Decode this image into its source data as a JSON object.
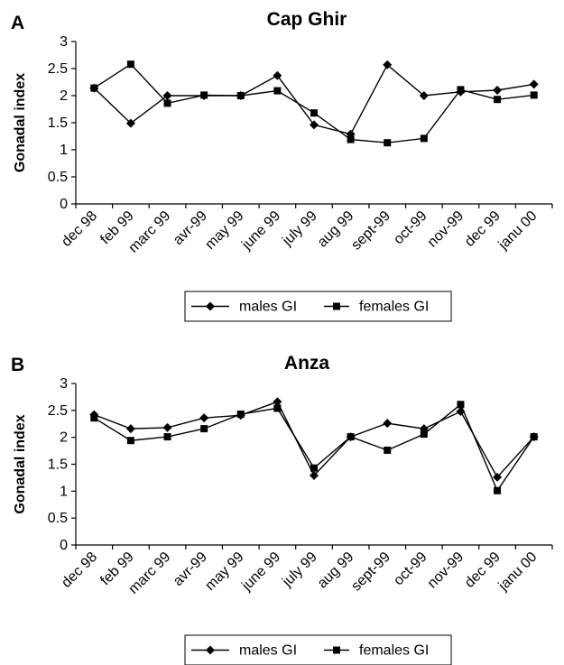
{
  "chart_data": [
    {
      "panel_label": "A",
      "type": "line",
      "title": "Cap Ghir",
      "xlabel": "",
      "ylabel": "Gonadal index",
      "ylim": [
        0,
        3
      ],
      "yticks": [
        "0",
        "0.5",
        "1",
        "1.5",
        "2",
        "2.5",
        "3"
      ],
      "categories": [
        "dec 98",
        "feb 99",
        "marc 99",
        "avr-99",
        "may 99",
        "june 99",
        "july 99",
        "aug 99",
        "sept-99",
        "oct-99",
        "nov-99",
        "dec 99",
        "janu 00"
      ],
      "grid": false,
      "legend_position": "bottom",
      "series": [
        {
          "name": "males GI",
          "marker": "diamond",
          "values": [
            2.14,
            1.49,
            2.0,
            2.0,
            2.0,
            2.37,
            1.46,
            1.29,
            2.57,
            2.0,
            2.07,
            2.1,
            2.21
          ]
        },
        {
          "name": "females GI",
          "marker": "square",
          "values": [
            2.14,
            2.58,
            1.86,
            2.01,
            2.0,
            2.09,
            1.68,
            1.19,
            1.13,
            1.21,
            2.11,
            1.93,
            2.01
          ]
        }
      ]
    },
    {
      "panel_label": "B",
      "type": "line",
      "title": "Anza",
      "xlabel": "",
      "ylabel": "Gonadal index",
      "ylim": [
        0,
        3
      ],
      "yticks": [
        "0",
        "0.5",
        "1",
        "1.5",
        "2",
        "2.5",
        "3"
      ],
      "categories": [
        "dec 98",
        "feb 99",
        "marc 99",
        "avr-99",
        "may 99",
        "june 99",
        "july 99",
        "aug 99",
        "sept-99",
        "oct-99",
        "nov-99",
        "dec 99",
        "janu 00"
      ],
      "grid": false,
      "legend_position": "bottom",
      "series": [
        {
          "name": "males GI",
          "marker": "diamond",
          "values": [
            2.42,
            2.16,
            2.18,
            2.36,
            2.41,
            2.66,
            1.29,
            2.01,
            2.26,
            2.16,
            2.48,
            1.26,
            2.01
          ]
        },
        {
          "name": "females GI",
          "marker": "square",
          "values": [
            2.36,
            1.94,
            2.01,
            2.16,
            2.43,
            2.54,
            1.43,
            2.01,
            1.76,
            2.06,
            2.61,
            1.01,
            2.01
          ]
        }
      ]
    }
  ]
}
